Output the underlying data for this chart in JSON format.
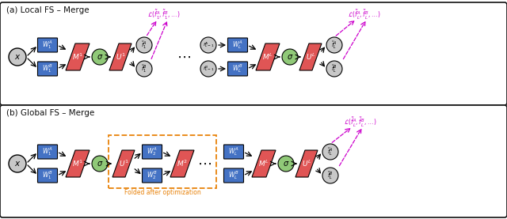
{
  "fig_width": 6.4,
  "fig_height": 2.77,
  "dpi": 100,
  "blue": "#4472c4",
  "red": "#e05555",
  "green": "#90c978",
  "gray": "#c8c8c8",
  "orange": "#e8820a",
  "magenta": "#cc00cc",
  "dark": "#111111",
  "white": "#ffffff",
  "panel_a_title": "(a) Local FS – Merge",
  "panel_b_title": "(b) Global FS – Merge",
  "folded_caption": "Folded after optimization"
}
